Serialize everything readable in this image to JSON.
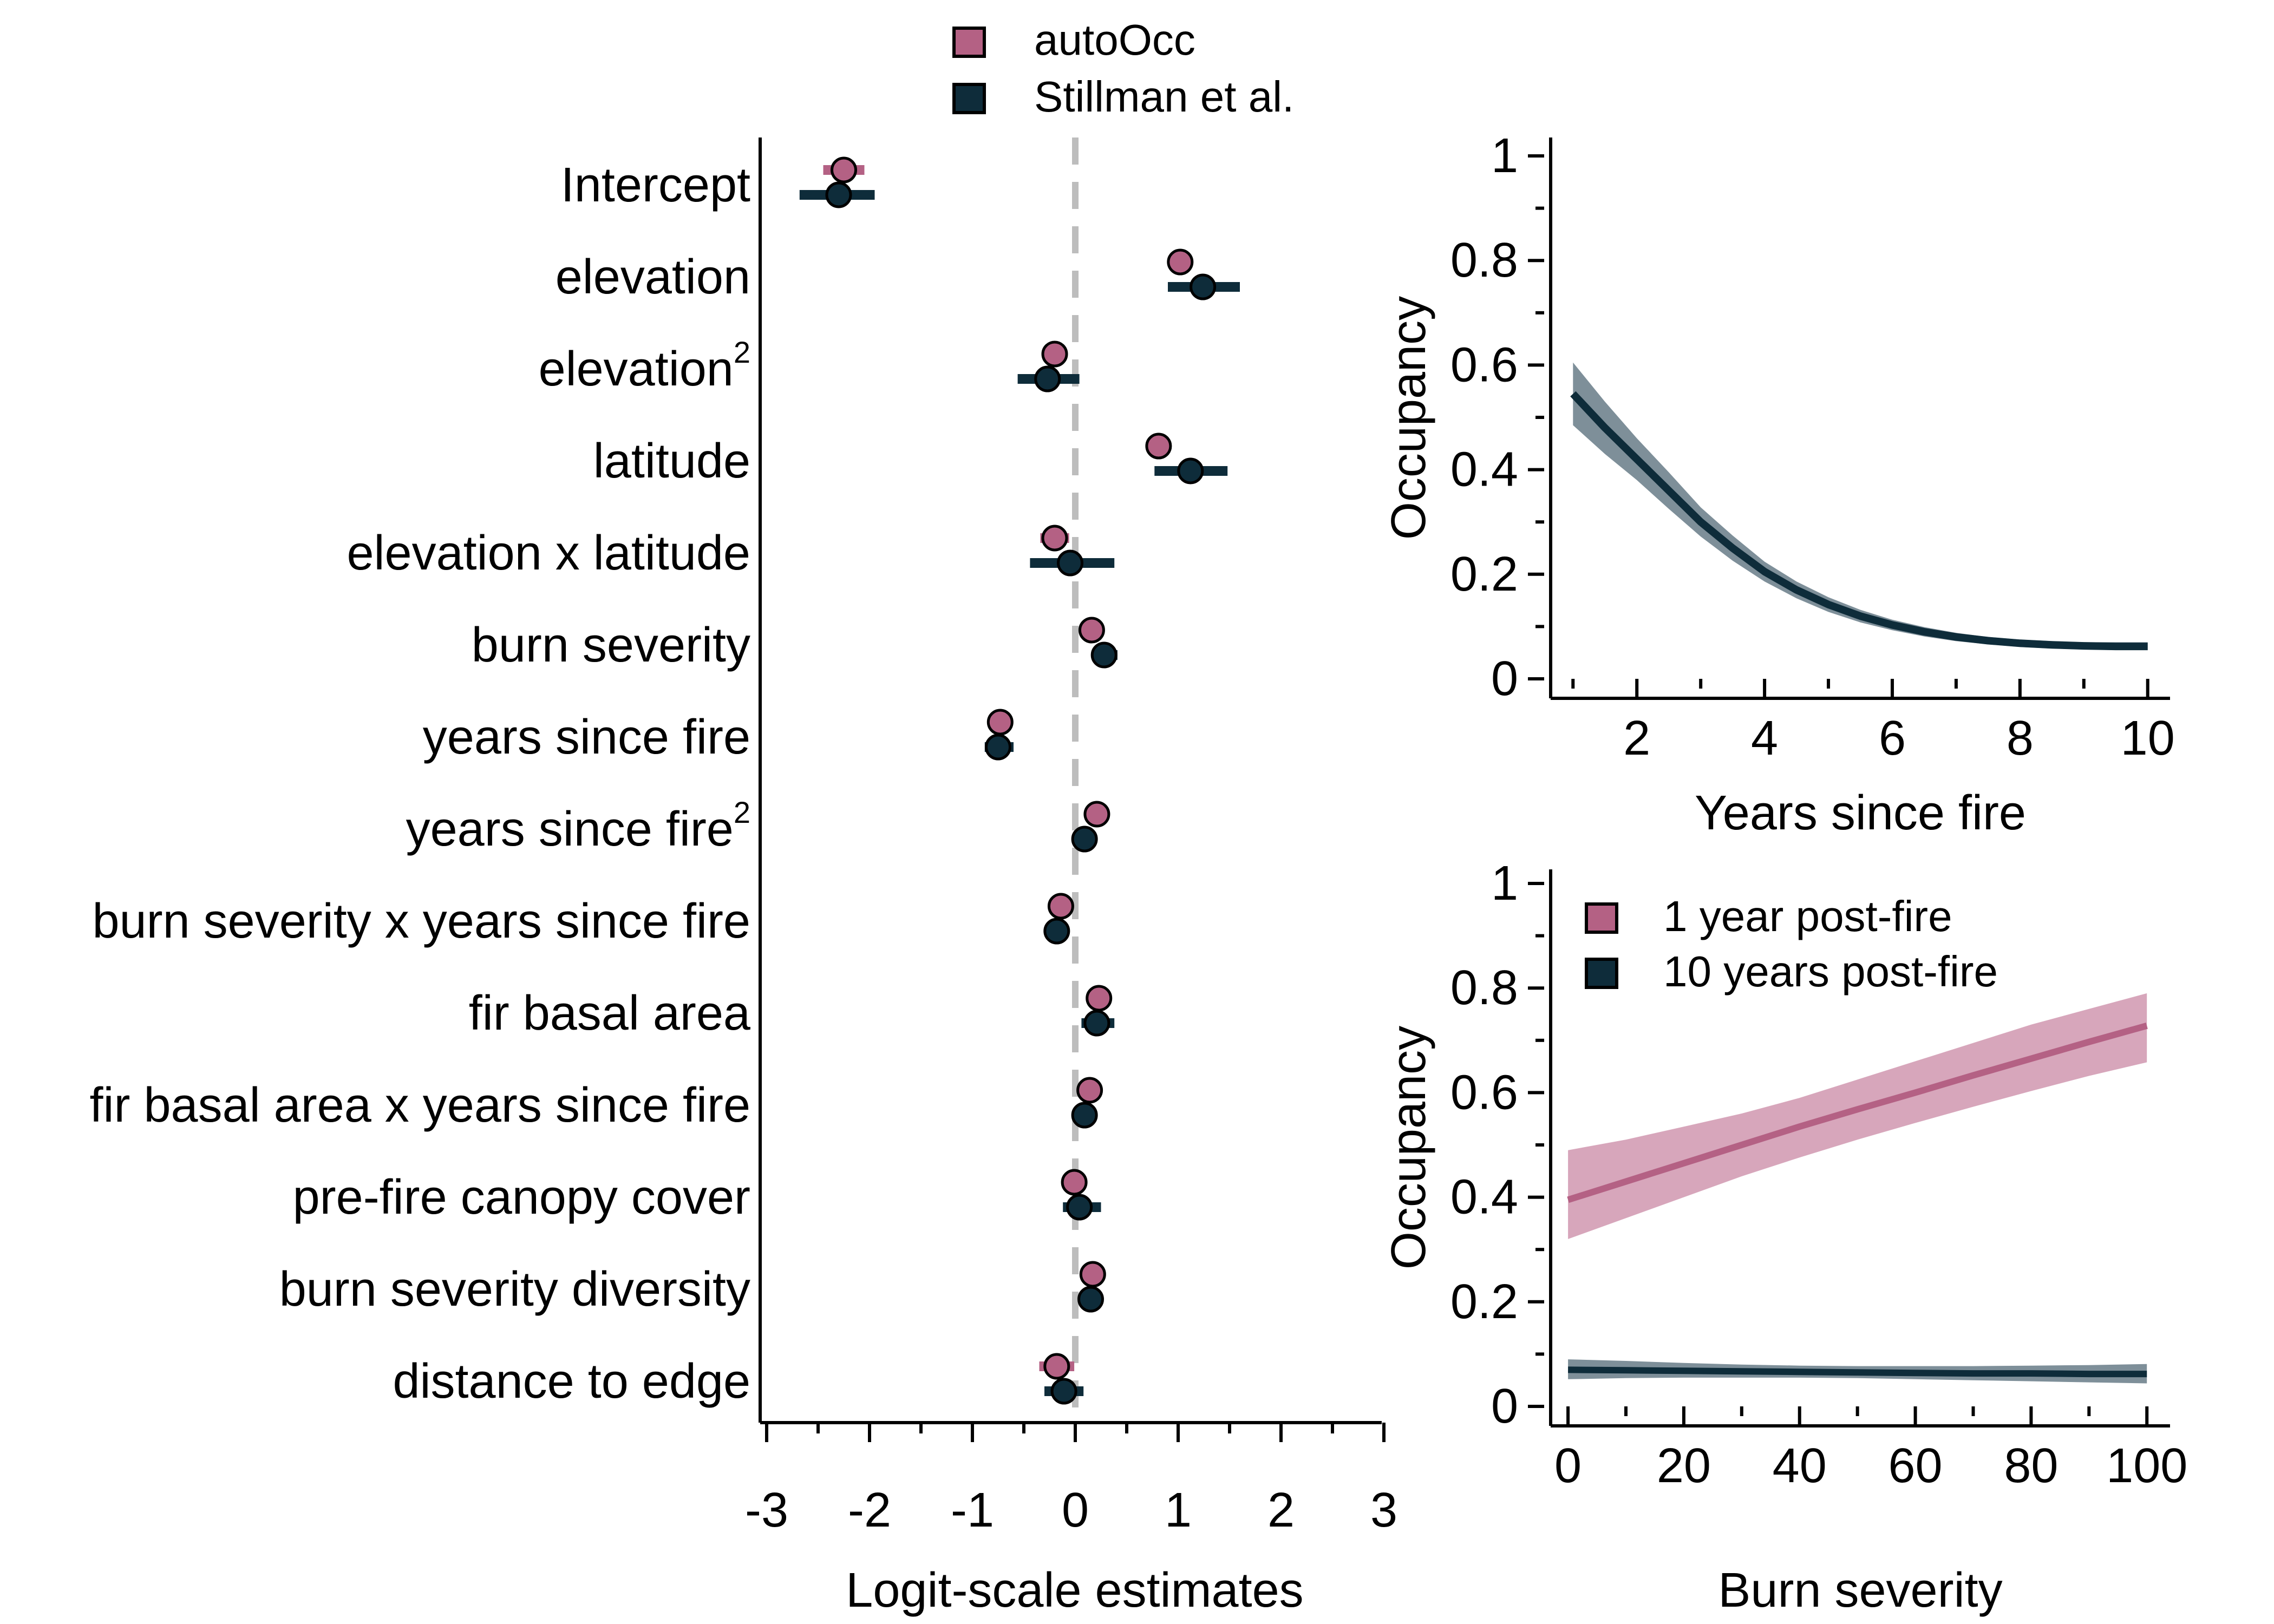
{
  "colors": {
    "autoOcc": "#b46184",
    "stillman": "#0e2c3a",
    "band_autoOcc": "#d7a6bb",
    "band_stillman": "#7e8f99",
    "zero_line": "#bdbdbd",
    "axis": "#000000"
  },
  "chart_data": [
    {
      "type": "scatter",
      "subtype": "coefficient-dot-whisker",
      "xlabel": "Logit-scale estimates",
      "xlim": [
        -3,
        3
      ],
      "xticks": [
        "-3",
        "-2",
        "-1",
        "0",
        "1",
        "2",
        "3"
      ],
      "zero_line": 0,
      "legend_position": "top",
      "legend": [
        "autoOcc",
        "Stillman et al."
      ],
      "terms": [
        {
          "label": "Intercept",
          "sup": ""
        },
        {
          "label": "elevation",
          "sup": ""
        },
        {
          "label": "elevation",
          "sup": "2"
        },
        {
          "label": "latitude",
          "sup": ""
        },
        {
          "label": "elevation x latitude",
          "sup": ""
        },
        {
          "label": "burn severity",
          "sup": ""
        },
        {
          "label": "years since fire",
          "sup": ""
        },
        {
          "label": "years since fire",
          "sup": "2"
        },
        {
          "label": "burn severity x years since fire",
          "sup": ""
        },
        {
          "label": "fir basal area",
          "sup": ""
        },
        {
          "label": "fir basal area x years since fire",
          "sup": ""
        },
        {
          "label": "pre-fire canopy cover",
          "sup": ""
        },
        {
          "label": "burn severity diversity",
          "sup": ""
        },
        {
          "label": "distance to edge",
          "sup": ""
        }
      ],
      "series": [
        {
          "name": "autoOcc",
          "estimates": [
            -2.25,
            1.02,
            -0.2,
            0.81,
            -0.2,
            0.16,
            -0.73,
            0.21,
            -0.14,
            0.23,
            0.14,
            -0.01,
            0.17,
            -0.18
          ],
          "lower": [
            -2.45,
            0.9,
            -0.32,
            0.7,
            -0.34,
            0.1,
            -0.8,
            0.14,
            -0.2,
            0.16,
            0.08,
            -0.1,
            0.1,
            -0.35
          ],
          "upper": [
            -2.05,
            1.14,
            -0.08,
            0.92,
            -0.06,
            0.22,
            -0.66,
            0.28,
            -0.08,
            0.3,
            0.2,
            0.08,
            0.24,
            -0.01
          ]
        },
        {
          "name": "Stillman et al.",
          "estimates": [
            -2.3,
            1.24,
            -0.27,
            1.12,
            -0.05,
            0.28,
            -0.75,
            0.09,
            -0.18,
            0.21,
            0.09,
            0.04,
            0.15,
            -0.11
          ],
          "lower": [
            -2.68,
            0.9,
            -0.56,
            0.77,
            -0.44,
            0.17,
            -0.88,
            -0.03,
            -0.27,
            0.06,
            0.01,
            -0.12,
            0.05,
            -0.3
          ],
          "upper": [
            -1.95,
            1.6,
            0.04,
            1.48,
            0.38,
            0.41,
            -0.6,
            0.2,
            -0.1,
            0.38,
            0.18,
            0.25,
            0.27,
            0.08
          ]
        }
      ]
    },
    {
      "type": "line",
      "xlabel": "Years since fire",
      "ylabel": "Occupancy",
      "xlim": [
        0.65,
        10.35
      ],
      "ylim": [
        0,
        1
      ],
      "xticks": [
        "2",
        "4",
        "6",
        "8",
        "10"
      ],
      "yticks": [
        "0",
        "0.2",
        "0.4",
        "0.6",
        "0.8",
        "1"
      ],
      "series": [
        {
          "x": [
            1,
            1.5,
            2,
            2.5,
            3,
            3.5,
            4,
            4.5,
            5,
            5.5,
            6,
            6.5,
            7,
            7.5,
            8,
            8.5,
            9,
            9.5,
            10
          ],
          "y": [
            0.545,
            0.48,
            0.42,
            0.36,
            0.3,
            0.25,
            0.205,
            0.17,
            0.142,
            0.12,
            0.103,
            0.09,
            0.08,
            0.073,
            0.068,
            0.065,
            0.063,
            0.062,
            0.062
          ],
          "lower": [
            0.485,
            0.43,
            0.38,
            0.325,
            0.272,
            0.226,
            0.186,
            0.154,
            0.128,
            0.108,
            0.093,
            0.081,
            0.072,
            0.066,
            0.061,
            0.058,
            0.056,
            0.055,
            0.055
          ],
          "upper": [
            0.605,
            0.53,
            0.46,
            0.395,
            0.328,
            0.274,
            0.224,
            0.186,
            0.156,
            0.132,
            0.113,
            0.099,
            0.088,
            0.08,
            0.075,
            0.072,
            0.07,
            0.07,
            0.07
          ]
        }
      ]
    },
    {
      "type": "line",
      "xlabel": "Burn severity",
      "ylabel": "Occupancy",
      "xlim": [
        -3,
        104
      ],
      "ylim": [
        0,
        1
      ],
      "xticks": [
        "0",
        "20",
        "40",
        "60",
        "80",
        "100"
      ],
      "yticks": [
        "0",
        "0.2",
        "0.4",
        "0.6",
        "0.8",
        "1"
      ],
      "legend_position": "top-left",
      "series": [
        {
          "name": "1 year post-fire",
          "x": [
            0,
            10,
            20,
            30,
            40,
            50,
            60,
            70,
            80,
            90,
            100
          ],
          "y": [
            0.395,
            0.43,
            0.465,
            0.5,
            0.535,
            0.568,
            0.6,
            0.633,
            0.665,
            0.697,
            0.728
          ],
          "lower": [
            0.32,
            0.36,
            0.4,
            0.44,
            0.476,
            0.51,
            0.542,
            0.573,
            0.603,
            0.632,
            0.658
          ],
          "upper": [
            0.49,
            0.51,
            0.535,
            0.56,
            0.59,
            0.625,
            0.66,
            0.695,
            0.73,
            0.76,
            0.79
          ]
        },
        {
          "name": "10 years post-fire",
          "x": [
            0,
            10,
            20,
            30,
            40,
            50,
            60,
            70,
            80,
            90,
            100
          ],
          "y": [
            0.07,
            0.069,
            0.068,
            0.067,
            0.066,
            0.065,
            0.064,
            0.063,
            0.063,
            0.062,
            0.062
          ],
          "lower": [
            0.052,
            0.054,
            0.055,
            0.055,
            0.055,
            0.054,
            0.052,
            0.05,
            0.048,
            0.046,
            0.044
          ],
          "upper": [
            0.09,
            0.087,
            0.083,
            0.08,
            0.078,
            0.077,
            0.077,
            0.077,
            0.078,
            0.079,
            0.081
          ]
        }
      ]
    }
  ]
}
